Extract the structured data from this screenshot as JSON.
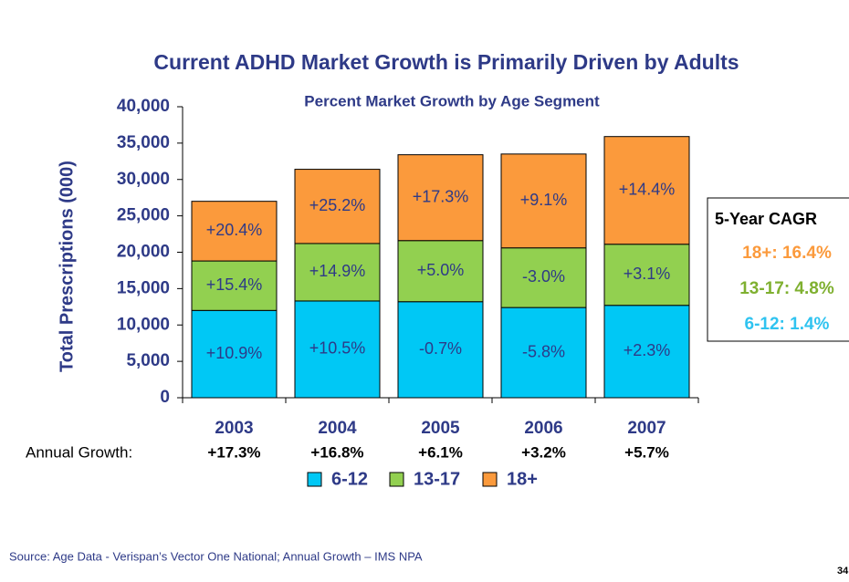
{
  "chart_data": {
    "type": "stacked_bar",
    "title": "Current ADHD Market Growth is Primarily Driven by Adults",
    "subtitle": "Percent Market Growth by Age Segment",
    "y_label": "Total Prescriptions (000)",
    "categories": [
      "2003",
      "2004",
      "2005",
      "2006",
      "2007"
    ],
    "series": [
      {
        "name": "6-12",
        "color": "#00c8f5",
        "values": [
          12000,
          13300,
          13200,
          12400,
          12700
        ],
        "growth_labels": [
          "+10.9%",
          "+10.5%",
          "-0.7%",
          "-5.8%",
          "+2.3%"
        ]
      },
      {
        "name": "13-17",
        "color": "#92d050",
        "values": [
          6800,
          7900,
          8400,
          8200,
          8400
        ],
        "growth_labels": [
          "+15.4%",
          "+14.9%",
          "+5.0%",
          "-3.0%",
          "+3.1%"
        ]
      },
      {
        "name": "18+",
        "color": "#fb9a3c",
        "values": [
          8200,
          10200,
          11800,
          12900,
          14800
        ],
        "growth_labels": [
          "+20.4%",
          "+25.2%",
          "+17.3%",
          "+9.1%",
          "+14.4%"
        ]
      }
    ],
    "ylim": [
      0,
      40000
    ],
    "yticks": [
      0,
      {
        "value": 5000,
        "label": "5,000"
      },
      {
        "value": 10000,
        "label": "10,000"
      },
      {
        "value": 15000,
        "label": "15,000"
      },
      {
        "value": 20000,
        "label": "20,000"
      },
      {
        "value": 25000,
        "label": "25,000"
      },
      {
        "value": 30000,
        "label": "30,000"
      },
      {
        "value": 35000,
        "label": "35,000"
      },
      {
        "value": 40000,
        "label": "40,000"
      }
    ],
    "annual_growth": {
      "label": "Annual Growth:",
      "values": [
        "+17.3%",
        "+16.8%",
        "+6.1%",
        "+3.2%",
        "+5.7%"
      ]
    },
    "cagr": {
      "title": "5-Year CAGR",
      "entries": [
        {
          "text": "18+: 16.4%",
          "color": "#fb9a3c"
        },
        {
          "text": "13-17: 4.8%",
          "color": "#7fb030"
        },
        {
          "text": "6-12: 1.4%",
          "color": "#2fc3f0"
        }
      ]
    },
    "source": "Source: Age Data - Verispan’s Vector One National; Annual Growth – IMS NPA",
    "page_number": "34"
  }
}
